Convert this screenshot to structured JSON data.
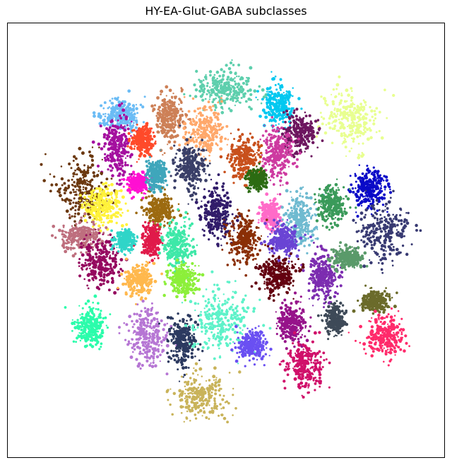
{
  "chart_data": {
    "type": "scatter",
    "title": "HY-EA-Glut-GABA subclasses",
    "xlabel": "",
    "ylabel": "",
    "axes_visible": false,
    "grid": false,
    "legend": "none",
    "xlim": [
      0,
      100
    ],
    "ylim": [
      0,
      100
    ],
    "series": [
      {
        "color": "#5ecfad",
        "center": [
          50,
          85
        ],
        "spread": [
          6,
          4
        ]
      },
      {
        "color": "#00c8f0",
        "center": [
          62,
          81
        ],
        "spread": [
          3,
          4
        ]
      },
      {
        "color": "#e8ff90",
        "center": [
          78,
          78
        ],
        "spread": [
          6,
          6
        ]
      },
      {
        "color": "#6bbcf5",
        "center": [
          26,
          79
        ],
        "spread": [
          4,
          3
        ]
      },
      {
        "color": "#cd8057",
        "center": [
          37,
          78
        ],
        "spread": [
          3,
          5
        ]
      },
      {
        "color": "#ffa86b",
        "center": [
          45,
          75
        ],
        "spread": [
          4,
          5
        ]
      },
      {
        "color": "#6d165f",
        "center": [
          67,
          75
        ],
        "spread": [
          4,
          4
        ]
      },
      {
        "color": "#a4109f",
        "center": [
          25,
          71
        ],
        "spread": [
          3,
          6
        ]
      },
      {
        "color": "#ff4a2a",
        "center": [
          31,
          73
        ],
        "spread": [
          2,
          3
        ]
      },
      {
        "color": "#cd3aa0",
        "center": [
          62,
          70
        ],
        "spread": [
          3,
          5
        ]
      },
      {
        "color": "#3a3f68",
        "center": [
          42,
          67
        ],
        "spread": [
          3,
          5
        ]
      },
      {
        "color": "#c8501c",
        "center": [
          54,
          69
        ],
        "spread": [
          3,
          4
        ]
      },
      {
        "color": "#2c6b12",
        "center": [
          57,
          64
        ],
        "spread": [
          2,
          2
        ]
      },
      {
        "color": "#0a0ac8",
        "center": [
          83,
          62
        ],
        "spread": [
          3,
          4
        ]
      },
      {
        "color": "#6b380f",
        "center": [
          17,
          62
        ],
        "spread": [
          6,
          7
        ]
      },
      {
        "color": "#fff23a",
        "center": [
          22,
          58
        ],
        "spread": [
          4,
          4
        ]
      },
      {
        "color": "#ff10d2",
        "center": [
          30,
          63
        ],
        "spread": [
          2,
          2
        ]
      },
      {
        "color": "#3fa6bb",
        "center": [
          34,
          65
        ],
        "spread": [
          2,
          3
        ]
      },
      {
        "color": "#9c6a10",
        "center": [
          35,
          57
        ],
        "spread": [
          3,
          3
        ]
      },
      {
        "color": "#311c6a",
        "center": [
          48,
          56
        ],
        "spread": [
          3,
          5
        ]
      },
      {
        "color": "#ff6bc8",
        "center": [
          60,
          56
        ],
        "spread": [
          2,
          3
        ]
      },
      {
        "color": "#6fbad0",
        "center": [
          67,
          55
        ],
        "spread": [
          3,
          5
        ]
      },
      {
        "color": "#3a9a5a",
        "center": [
          74,
          58
        ],
        "spread": [
          3,
          4
        ]
      },
      {
        "color": "#383a72",
        "center": [
          86,
          52
        ],
        "spread": [
          5,
          6
        ]
      },
      {
        "color": "#8a2f06",
        "center": [
          54,
          50
        ],
        "spread": [
          3,
          5
        ]
      },
      {
        "color": "#6a44d4",
        "center": [
          63,
          50
        ],
        "spread": [
          3,
          3
        ]
      },
      {
        "color": "#be6f7e",
        "center": [
          17,
          51
        ],
        "spread": [
          4,
          3
        ]
      },
      {
        "color": "#95085f",
        "center": [
          21,
          45
        ],
        "spread": [
          4,
          5
        ]
      },
      {
        "color": "#30d5c8",
        "center": [
          27,
          50
        ],
        "spread": [
          2,
          2
        ]
      },
      {
        "color": "#e01a4a",
        "center": [
          33,
          50
        ],
        "spread": [
          2,
          3
        ]
      },
      {
        "color": "#3ee8a8",
        "center": [
          39,
          49
        ],
        "spread": [
          3,
          5
        ]
      },
      {
        "color": "#ffb84d",
        "center": [
          30,
          41
        ],
        "spread": [
          3,
          3
        ]
      },
      {
        "color": "#8cef3a",
        "center": [
          40,
          41
        ],
        "spread": [
          3,
          3
        ]
      },
      {
        "color": "#640010",
        "center": [
          62,
          42
        ],
        "spread": [
          4,
          4
        ]
      },
      {
        "color": "#7c2db0",
        "center": [
          72,
          42
        ],
        "spread": [
          3,
          5
        ]
      },
      {
        "color": "#5a9a6a",
        "center": [
          78,
          46
        ],
        "spread": [
          3,
          2
        ]
      },
      {
        "color": "#2bfcab",
        "center": [
          19,
          30
        ],
        "spread": [
          3,
          4
        ]
      },
      {
        "color": "#b676d4",
        "center": [
          32,
          28
        ],
        "spread": [
          4,
          6
        ]
      },
      {
        "color": "#2c3a60",
        "center": [
          40,
          27
        ],
        "spread": [
          3,
          5
        ]
      },
      {
        "color": "#5ef2c9",
        "center": [
          49,
          31
        ],
        "spread": [
          6,
          7
        ]
      },
      {
        "color": "#6a50f2",
        "center": [
          56,
          26
        ],
        "spread": [
          3,
          3
        ]
      },
      {
        "color": "#96138a",
        "center": [
          65,
          31
        ],
        "spread": [
          3,
          4
        ]
      },
      {
        "color": "#3e4a58",
        "center": [
          75,
          32
        ],
        "spread": [
          2,
          3
        ]
      },
      {
        "color": "#6b6b2b",
        "center": [
          84,
          36
        ],
        "spread": [
          3,
          2
        ]
      },
      {
        "color": "#ff2a6b",
        "center": [
          86,
          28
        ],
        "spread": [
          4,
          4
        ]
      },
      {
        "color": "#d0106a",
        "center": [
          68,
          21
        ],
        "spread": [
          4,
          5
        ]
      },
      {
        "color": "#c9b35a",
        "center": [
          44,
          14
        ],
        "spread": [
          6,
          5
        ]
      }
    ]
  }
}
